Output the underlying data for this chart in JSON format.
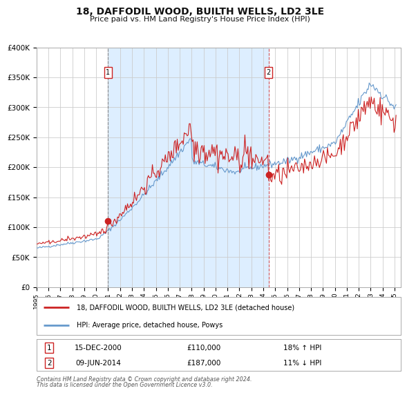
{
  "title": "18, DAFFODIL WOOD, BUILTH WELLS, LD2 3LE",
  "subtitle": "Price paid vs. HM Land Registry's House Price Index (HPI)",
  "legend_line1": "18, DAFFODIL WOOD, BUILTH WELLS, LD2 3LE (detached house)",
  "legend_line2": "HPI: Average price, detached house, Powys",
  "annotation1_label": "1",
  "annotation1_date": "15-DEC-2000",
  "annotation1_price": "£110,000",
  "annotation1_hpi": "18% ↑ HPI",
  "annotation2_label": "2",
  "annotation2_date": "09-JUN-2014",
  "annotation2_price": "£187,000",
  "annotation2_hpi": "11% ↓ HPI",
  "footer1": "Contains HM Land Registry data © Crown copyright and database right 2024.",
  "footer2": "This data is licensed under the Open Government Licence v3.0.",
  "xmin": 1995.0,
  "xmax": 2025.5,
  "ymin": 0,
  "ymax": 400000,
  "yticks": [
    0,
    50000,
    100000,
    150000,
    200000,
    250000,
    300000,
    350000,
    400000
  ],
  "ytick_labels": [
    "£0",
    "£50K",
    "£100K",
    "£150K",
    "£200K",
    "£250K",
    "£300K",
    "£350K",
    "£400K"
  ],
  "red_color": "#cc2222",
  "blue_color": "#6699cc",
  "shade_color": "#ddeeff",
  "grid_color": "#cccccc",
  "bg_color": "#ffffff",
  "vline1_x": 2001.0,
  "vline2_x": 2014.44,
  "marker1_x": 2000.96,
  "marker1_y": 110000,
  "marker2_x": 2014.44,
  "marker2_y": 187000,
  "shade_x1": 2001.0,
  "shade_x2": 2014.44
}
